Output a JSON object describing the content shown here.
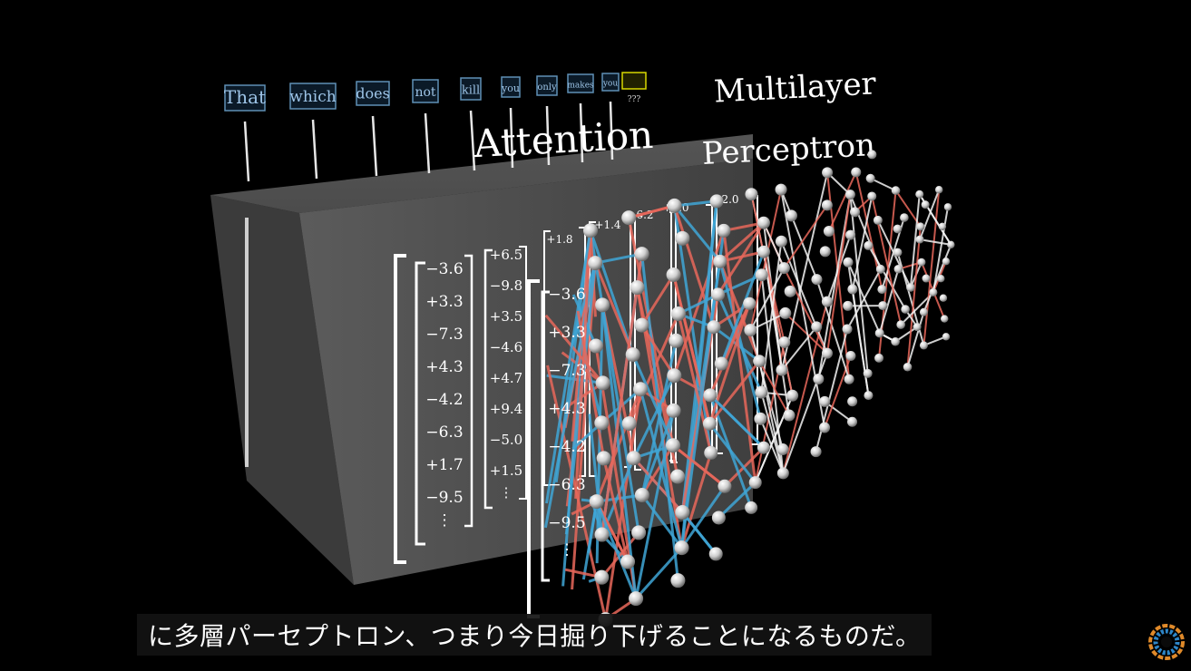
{
  "tokens": [
    "That",
    "which",
    "does",
    "not",
    "kill",
    "you",
    "only",
    "makes",
    "you"
  ],
  "unknown_token": "???",
  "labels": {
    "attention": "Attention",
    "mlp_line1": "Multilayer",
    "mlp_line2": "Perceptron"
  },
  "vector_main": [
    "−3.6",
    "+3.3",
    "−7.3",
    "+4.3",
    "−4.2",
    "−6.3",
    "+1.7",
    "−9.5"
  ],
  "vector_second": [
    "+6.5",
    "−9.8",
    "+3.5",
    "−4.6",
    "+4.7",
    "+9.4",
    "−5.0",
    "+1.5"
  ],
  "vector_front": [
    "−3.6",
    "+3.3",
    "−7.3",
    "+4.3",
    "−4.2",
    "−6.3",
    "−9.5"
  ],
  "vector_tops": [
    "+1.8",
    "+1.4",
    "−6.2",
    "+9.0",
    "+2.0"
  ],
  "subtitle": "に多層パーセプトロン、つまり今日掘り下げることになるものだ。",
  "colors": {
    "background": "#000000",
    "token_box_border": "#5f8fb5",
    "token_text": "#9ec5e8",
    "unknown_box": "#d8d800",
    "connection_red": "#e8675a",
    "connection_blue": "#3fa6d6",
    "connection_white": "#f2f2f2",
    "neuron": "#d8d8d8"
  },
  "icons": [
    "loading-spinner-icon"
  ]
}
